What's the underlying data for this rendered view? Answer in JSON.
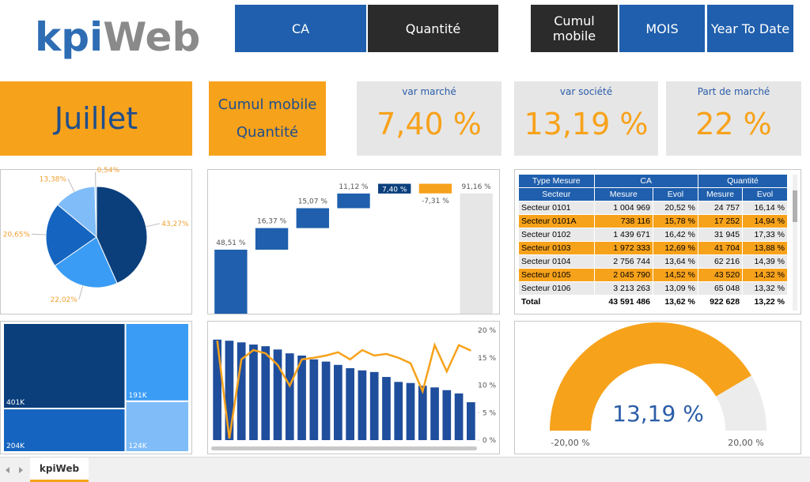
{
  "header": {
    "logo": [
      "kpi",
      "Web"
    ],
    "buttons": [
      "CA",
      "Quantité",
      "Cumul mobile",
      "MOIS",
      "Year To Date"
    ]
  },
  "tiles": {
    "month": "Juillet",
    "mode": [
      "Cumul mobile",
      "Quantité"
    ]
  },
  "kpis": [
    {
      "label": "var marché",
      "value": "7,40 %"
    },
    {
      "label": "var société",
      "value": "13,19 %"
    },
    {
      "label": "Part de marché",
      "value": "22 %"
    }
  ],
  "chart_data": [
    {
      "type": "pie",
      "values": [
        43.27,
        22.02,
        20.65,
        13.38,
        0.54
      ],
      "value_labels": [
        "43,27%",
        "22,02%",
        "20,65%",
        "13,38%",
        "0,54%"
      ],
      "colors": [
        "#0b3f7c",
        "#3a9cf5",
        "#1565c0",
        "#7fbcf8",
        "#a9d3fb"
      ],
      "label_color": "#f0a030"
    },
    {
      "type": "waterfall",
      "categories": [
        null,
        null,
        null,
        null,
        null,
        null,
        null
      ],
      "values": [
        48.51,
        16.37,
        15.07,
        11.12,
        7.4,
        -7.31,
        91.16
      ],
      "value_labels": [
        "48,51 %",
        "16,37 %",
        "15,07 %",
        "11,12 %",
        "7,40 %",
        "-7,31 %",
        "91,16 %"
      ],
      "colors": [
        "#1f5fad",
        "#1f5fad",
        "#1f5fad",
        "#1f5fad",
        "#0b3f7c",
        "#f7a21b",
        "#e6e6e6"
      ],
      "ylim": [
        0,
        100
      ]
    },
    {
      "type": "treemap",
      "values": [
        401000,
        204000,
        191000,
        124000
      ],
      "value_labels": [
        "401K",
        "204K",
        "191K",
        "124K"
      ],
      "colors": [
        "#0b3f7c",
        "#1565c0",
        "#3a9cf5",
        "#7fbcf8"
      ]
    },
    {
      "type": "combo",
      "categories": [
        null,
        null,
        null,
        null,
        null,
        null,
        null,
        null,
        null,
        null,
        null,
        null,
        null,
        null,
        null,
        null,
        null,
        null,
        null,
        null,
        null,
        null
      ],
      "series": [
        {
          "type": "bar",
          "color": "#1f4e9c",
          "values": [
            18.3,
            18.1,
            17.8,
            17.4,
            17.1,
            16.5,
            15.8,
            15.4,
            14.7,
            14.3,
            13.7,
            13.1,
            12.7,
            12.4,
            11.5,
            10.6,
            10.4,
            9.9,
            9.6,
            9.1,
            8.5,
            6.9
          ]
        },
        {
          "type": "line",
          "color": "#f7a21b",
          "values": [
            18.1,
            0.3,
            14.7,
            16.4,
            15.8,
            13.7,
            9.9,
            14.7,
            15.0,
            15.4,
            16.0,
            14.7,
            16.4,
            15.4,
            15.7,
            15.0,
            14.0,
            8.9,
            17.3,
            12.5,
            17.3,
            16.3
          ]
        }
      ],
      "ylim": [
        0,
        20
      ],
      "yticks": [
        {
          "value": 0,
          "label": "0 %"
        },
        {
          "value": 5,
          "label": "5 %"
        },
        {
          "value": 10,
          "label": "10 %"
        },
        {
          "value": 15,
          "label": "15 %"
        },
        {
          "value": 20,
          "label": "20 %"
        }
      ],
      "axis_side": "right"
    },
    {
      "type": "gauge",
      "values": [
        13.19
      ],
      "value_labels": [
        "13,19 %"
      ],
      "ylim": [
        -20,
        20
      ],
      "yticks": [
        {
          "value": -20,
          "label": "-20,00 %"
        },
        {
          "value": 20,
          "label": "20,00 %"
        }
      ],
      "color": "#f7a21b"
    }
  ],
  "table": {
    "headers": [
      [
        "Type Mesure",
        "CA",
        "Quantité"
      ],
      [
        "Secteur",
        "Mesure",
        "Evol",
        "Mesure",
        "Evol"
      ]
    ],
    "rows": [
      [
        "Secteur 0101",
        "1 004 969",
        "20,52 %",
        "24 757",
        "16,14 %"
      ],
      [
        "Secteur 0101A",
        "738 116",
        "15,78 %",
        "17 252",
        "14,94 %"
      ],
      [
        "Secteur 0102",
        "1 439 671",
        "16,42 %",
        "31 945",
        "17,33 %"
      ],
      [
        "Secteur 0103",
        "1 972 333",
        "12,69 %",
        "41 704",
        "13,88 %"
      ],
      [
        "Secteur 0104",
        "2 756 744",
        "13,64 %",
        "62 216",
        "14,39 %"
      ],
      [
        "Secteur 0105",
        "2 045 790",
        "14,52 %",
        "43 520",
        "14,32 %"
      ],
      [
        "Secteur 0106",
        "3 213 263",
        "13,09 %",
        "65 048",
        "13,32 %"
      ]
    ],
    "total": [
      "Total",
      "43 591 486",
      "13,62 %",
      "922 628",
      "13,22 %"
    ]
  },
  "tabs": [
    "kpiWeb"
  ]
}
